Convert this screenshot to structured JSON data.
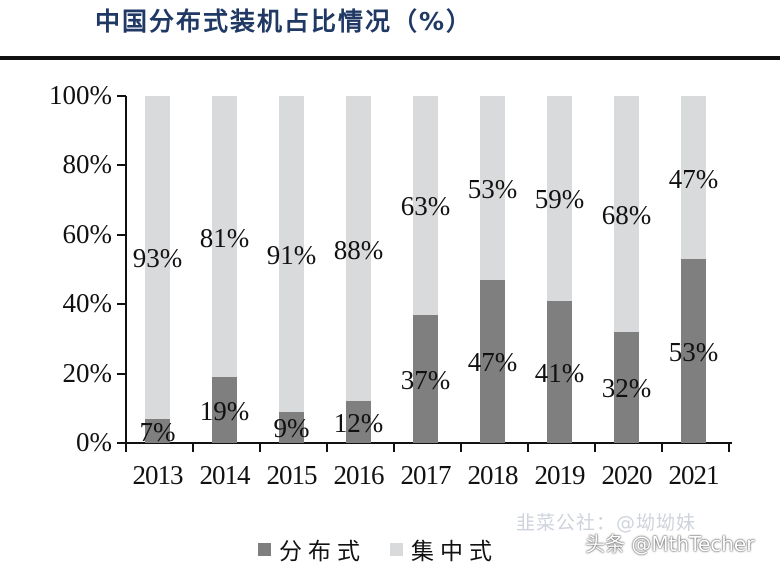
{
  "header": {
    "title": "中国分布式装机占比情况（%）"
  },
  "chart_data": {
    "type": "bar",
    "stacked": true,
    "percent_stacked": true,
    "title": "中国分布式装机占比情况（%）",
    "xlabel": "",
    "ylabel": "",
    "ylim": [
      0,
      100
    ],
    "yticks": [
      "0%",
      "20%",
      "40%",
      "60%",
      "80%",
      "100%"
    ],
    "grid": false,
    "legend_position": "bottom",
    "categories": [
      "2013",
      "2014",
      "2015",
      "2016",
      "2017",
      "2018",
      "2019",
      "2020",
      "2021"
    ],
    "series": [
      {
        "name": "分布式",
        "color": "#7f7f7f",
        "values": [
          7,
          19,
          9,
          12,
          37,
          47,
          41,
          32,
          53
        ],
        "labels": [
          "7%",
          "19%",
          "9%",
          "12%",
          "37%",
          "47%",
          "41%",
          "32%",
          "53%"
        ]
      },
      {
        "name": "集中式",
        "color": "#d9dadc",
        "values": [
          93,
          81,
          91,
          88,
          63,
          53,
          59,
          68,
          47
        ],
        "labels": [
          "93%",
          "81%",
          "91%",
          "88%",
          "63%",
          "53%",
          "59%",
          "68%",
          "47%"
        ]
      }
    ]
  },
  "legend": {
    "items": [
      {
        "label": "分布式",
        "color": "#7f7f7f"
      },
      {
        "label": "集中式",
        "color": "#d9dadc"
      }
    ]
  },
  "watermark": {
    "line1": "韭菜公社：@坳坳妹",
    "line2": "头条 @MthTecher"
  }
}
